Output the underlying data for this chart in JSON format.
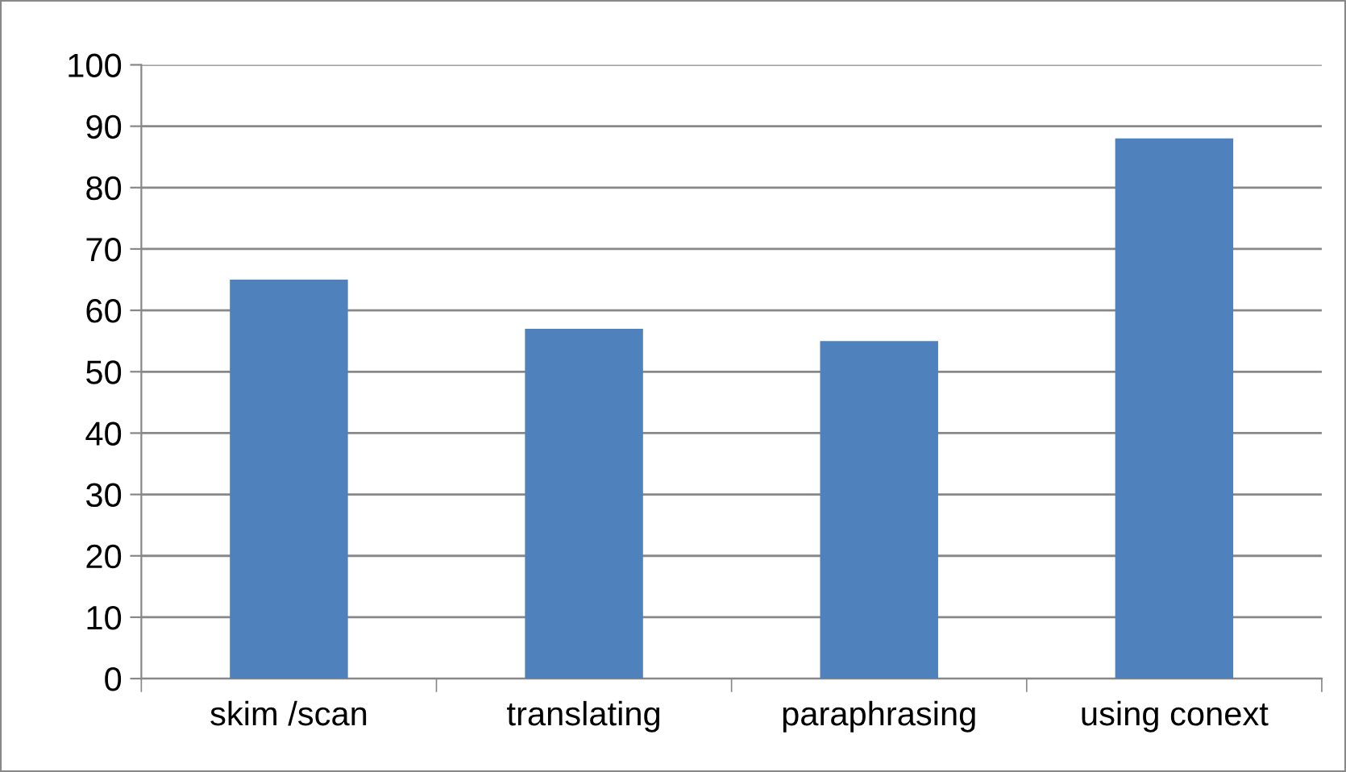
{
  "chart_data": {
    "type": "bar",
    "categories": [
      "skim /scan",
      "translating",
      "paraphrasing",
      "using conext"
    ],
    "values": [
      65,
      57,
      55,
      88
    ],
    "color": "#4f81bd",
    "ylim": [
      0,
      100
    ],
    "yticks": [
      0,
      10,
      20,
      30,
      40,
      50,
      60,
      70,
      80,
      90,
      100
    ],
    "grid": "y"
  }
}
